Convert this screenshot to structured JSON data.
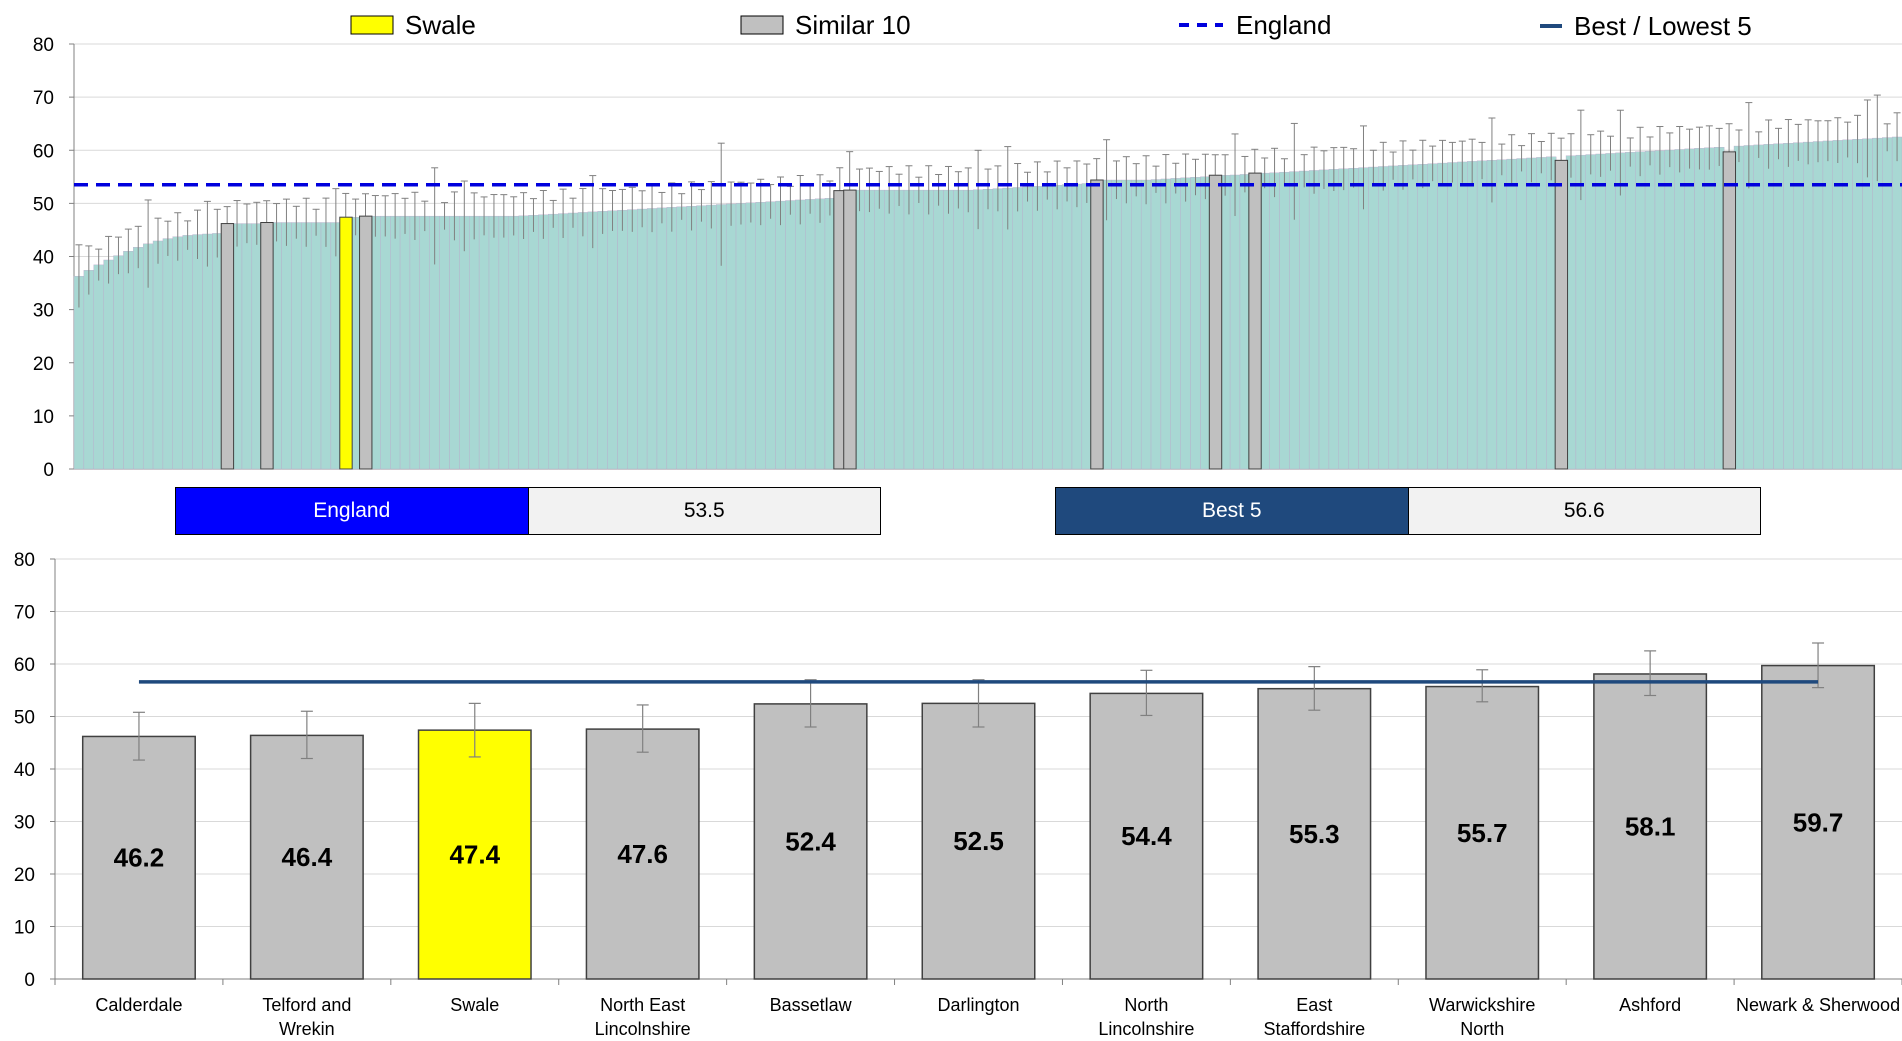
{
  "legend": {
    "items": [
      {
        "label": "Swale",
        "kind": "swatch",
        "color": "#ffff00"
      },
      {
        "label": "Similar 10",
        "kind": "swatch",
        "color": "#c0c0c0"
      },
      {
        "label": "England",
        "kind": "dashed",
        "color": "#0000dd"
      },
      {
        "label": "Best / Lowest 5",
        "kind": "solid",
        "color": "#1f497d"
      }
    ]
  },
  "summary": {
    "england": {
      "label": "England",
      "value": "53.5",
      "color": "#0000ff"
    },
    "best5": {
      "label": "Best 5",
      "value": "56.6",
      "color": "#1f497d"
    }
  },
  "chart_data": [
    {
      "type": "bar",
      "title": "",
      "xlabel": "",
      "ylabel": "",
      "ylim": [
        0,
        80
      ],
      "yticks": [
        0,
        10,
        20,
        30,
        40,
        50,
        60,
        70,
        80
      ],
      "grid": true,
      "bar_count": 185,
      "value_range": [
        36.3,
        62.5
      ],
      "england_line": 53.5,
      "highlight": [
        {
          "index": 15,
          "name": "Calderdale",
          "value": 46.2,
          "kind": "similar"
        },
        {
          "index": 19,
          "name": "Telford and Wrekin",
          "value": 46.4,
          "kind": "similar"
        },
        {
          "index": 27,
          "name": "Swale",
          "value": 47.4,
          "kind": "swale"
        },
        {
          "index": 29,
          "name": "North East Lincolnshire",
          "value": 47.6,
          "kind": "similar"
        },
        {
          "index": 77,
          "name": "Bassetlaw",
          "value": 52.4,
          "kind": "similar"
        },
        {
          "index": 78,
          "name": "Darlington",
          "value": 52.5,
          "kind": "similar"
        },
        {
          "index": 103,
          "name": "North Lincolnshire",
          "value": 54.4,
          "kind": "similar"
        },
        {
          "index": 115,
          "name": "East Staffordshire",
          "value": 55.3,
          "kind": "similar"
        },
        {
          "index": 119,
          "name": "Warwickshire North",
          "value": 55.7,
          "kind": "similar"
        },
        {
          "index": 150,
          "name": "Ashford",
          "value": 58.1,
          "kind": "similar"
        },
        {
          "index": 167,
          "name": "Newark & Sherwood",
          "value": 59.7,
          "kind": "similar"
        }
      ]
    },
    {
      "type": "bar",
      "title": "",
      "xlabel": "",
      "ylabel": "",
      "ylim": [
        0,
        80
      ],
      "yticks": [
        0,
        10,
        20,
        30,
        40,
        50,
        60,
        70,
        80
      ],
      "grid": true,
      "best5_line": 56.6,
      "categories": [
        "Calderdale",
        "Telford and Wrekin",
        "Swale",
        "North East Lincolnshire",
        "Bassetlaw",
        "Darlington",
        "North Lincolnshire",
        "East Staffordshire",
        "Warwickshire North",
        "Ashford",
        "Newark & Sherwood"
      ],
      "values": [
        46.2,
        46.4,
        47.4,
        47.6,
        52.4,
        52.5,
        54.4,
        55.3,
        55.7,
        58.1,
        59.7
      ],
      "value_labels": [
        "46.2",
        "46.4",
        "47.4",
        "47.6",
        "52.4",
        "52.5",
        "54.4",
        "55.3",
        "55.7",
        "58.1",
        "59.7"
      ],
      "ci_low": [
        41.7,
        42.0,
        42.3,
        43.2,
        48.0,
        48.0,
        50.2,
        51.2,
        52.8,
        54.0,
        55.5
      ],
      "ci_high": [
        50.8,
        51.0,
        52.5,
        52.2,
        57.0,
        57.0,
        58.8,
        59.5,
        58.9,
        62.5,
        64.0
      ],
      "swale_index": 2,
      "colors": {
        "swale": "#ffff00",
        "similar": "#c0c0c0"
      }
    }
  ]
}
